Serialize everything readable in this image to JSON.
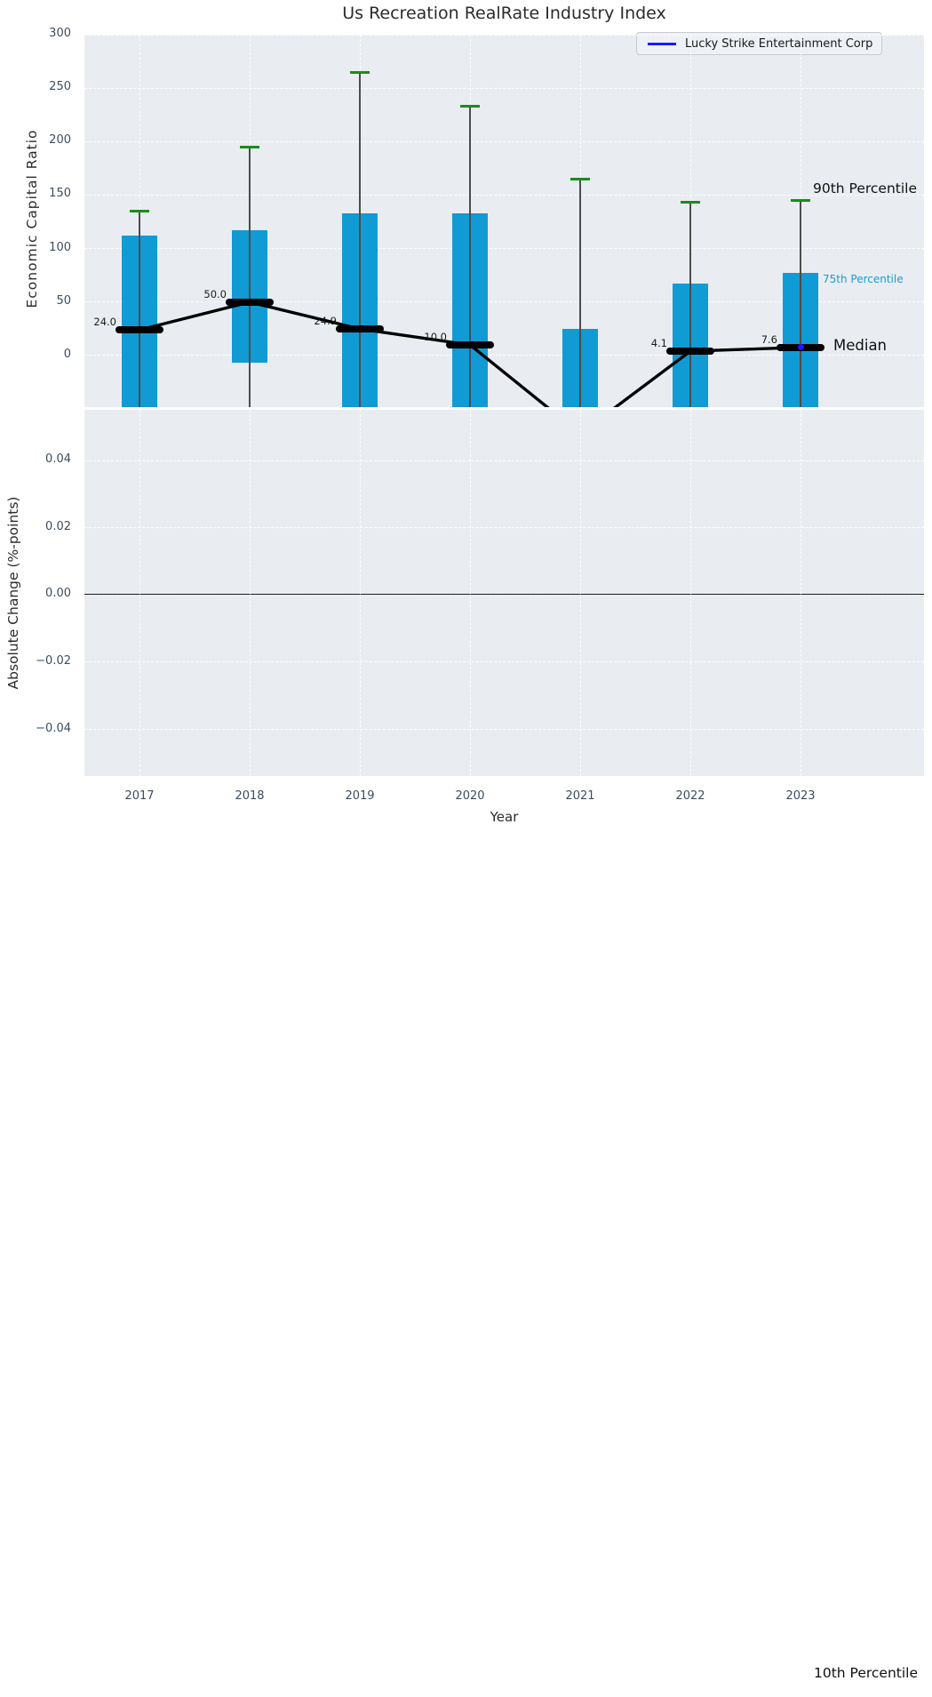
{
  "figure": {
    "title": "Us Recreation RealRate Industry Index"
  },
  "legend": {
    "label": "Lucky Strike Entertainment Corp",
    "line_color": "#1a1aff"
  },
  "axes": {
    "top": {
      "ylabel": "Economic Capital Ratio",
      "ylim": [
        -48.2,
        300
      ],
      "yticks": [
        {
          "value": 300,
          "label": "300"
        },
        {
          "value": 250,
          "label": "250"
        },
        {
          "value": 200,
          "label": "200"
        },
        {
          "value": 150,
          "label": "150"
        },
        {
          "value": 100,
          "label": "100"
        },
        {
          "value": 50,
          "label": "50"
        },
        {
          "value": 0,
          "label": "0"
        }
      ]
    },
    "bottom": {
      "ylabel": "Absolute Change (%-points)",
      "ylim": [
        -0.0539,
        0.0552
      ],
      "yticks": [
        {
          "value": 0.04,
          "label": "0.04"
        },
        {
          "value": 0.02,
          "label": "0.02"
        },
        {
          "value": 0,
          "label": "0.00"
        },
        {
          "value": -0.02,
          "label": "−0.02"
        },
        {
          "value": -0.04,
          "label": "−0.04"
        }
      ],
      "zero_line_value": 0
    },
    "x": {
      "label": "Year",
      "ticks": [
        "2017",
        "2018",
        "2019",
        "2020",
        "2021",
        "2022",
        "2023"
      ]
    }
  },
  "annotations": [
    {
      "id": "p90",
      "text": "90th Percentile",
      "color": "#111111"
    },
    {
      "id": "p75",
      "text": "75th Percentile",
      "color": "#1b9cd8"
    },
    {
      "id": "median",
      "text": "Median",
      "color": "#111111"
    },
    {
      "id": "p10",
      "text": "10th Percentile",
      "color": "#111111"
    }
  ],
  "colors": {
    "bar": "#119bd4",
    "whisker_cap": "#1a8c1a",
    "whisker_line": "#4c4c4c",
    "median": "#000000",
    "company": "#1a1aff",
    "axes_background": "#e9edf1",
    "grid": "#ffffff",
    "tick_text": "#3c4d60"
  },
  "chart_data": [
    {
      "type": "bar",
      "title": "Us Recreation RealRate Industry Index",
      "xlabel": "Year",
      "ylabel": "Economic Capital Ratio",
      "categories": [
        2017,
        2018,
        2019,
        2020,
        2021,
        2022,
        2023
      ],
      "ylim": [
        -48.2,
        300
      ],
      "grid": true,
      "legend_position": "upper right",
      "series": [
        {
          "name": "90th Percentile (whisker cap)",
          "values": [
            135,
            195,
            265,
            233,
            165,
            143,
            145
          ]
        },
        {
          "name": "75th Percentile (bar top)",
          "values": [
            112,
            117,
            133,
            133,
            25,
            67,
            77
          ]
        },
        {
          "name": "25th Percentile (bar bottom; clipped below axis except 2018)",
          "values": [
            null,
            -7,
            null,
            null,
            null,
            null,
            null
          ]
        },
        {
          "name": "Median",
          "values": [
            24.0,
            50.0,
            24.9,
            10.0,
            null,
            4.1,
            7.6
          ],
          "labels": [
            "24.0",
            "50.0",
            "24.9",
            "10.0",
            null,
            "4.1",
            "7.6"
          ]
        },
        {
          "name": "Median line (2021 dips off-scale, estimated)",
          "values": [
            24.0,
            50.0,
            24.9,
            10.0,
            -73,
            4.1,
            7.6
          ]
        },
        {
          "name": "Lucky Strike Entertainment Corp",
          "points": [
            {
              "x": 2023,
              "y": 7.6
            }
          ]
        }
      ]
    },
    {
      "type": "line",
      "xlabel": "Year",
      "ylabel": "Absolute Change (%-points)",
      "categories": [
        2017,
        2018,
        2019,
        2020,
        2021,
        2022,
        2023
      ],
      "ylim": [
        -0.0539,
        0.0552
      ],
      "grid": true,
      "series": [
        {
          "name": "zero reference line",
          "values": [
            0,
            0,
            0,
            0,
            0,
            0,
            0
          ]
        }
      ]
    }
  ]
}
